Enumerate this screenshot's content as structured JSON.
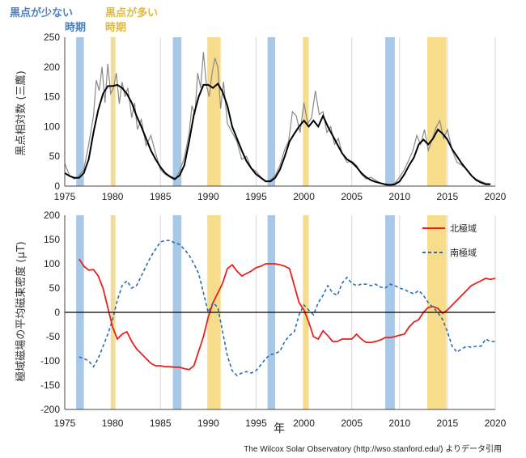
{
  "legend_key": {
    "low": {
      "line1": "黒点が少ない",
      "line2": "時期",
      "color": "#4a7fc1"
    },
    "high": {
      "line1": "黒点が多い",
      "line2": "時期",
      "color": "#e0b93a"
    }
  },
  "credit": "The Wilcox Solar Observatory (http://wso.stanford.edu/) よりデータ引用",
  "colors": {
    "low_band": "#a8c8e8",
    "high_band": "#f7dc8c",
    "north": "#e8201e",
    "south": "#2a6db5",
    "sunspot_raw": "#888888",
    "sunspot_smooth": "#000000"
  },
  "chart_data": [
    {
      "type": "line",
      "ylabel": "黒点相対数 (三鷹)",
      "xlabel": "",
      "xlim": [
        1975,
        2020
      ],
      "ylim": [
        0,
        250
      ],
      "x_ticks": [
        "1975",
        "1980",
        "1985",
        "1990",
        "1995",
        "2000",
        "2005",
        "2010",
        "2015",
        "2020"
      ],
      "y_ticks": [
        "0",
        "50",
        "100",
        "150",
        "200",
        "250"
      ],
      "grid": "vertical",
      "shaded_periods": {
        "low": [
          [
            1976.2,
            1977.0
          ],
          [
            1986.3,
            1987.2
          ],
          [
            1996.2,
            1997.0
          ],
          [
            2008.5,
            2009.5
          ]
        ],
        "high": [
          [
            1979.8,
            1980.3
          ],
          [
            1989.9,
            1991.3
          ],
          [
            1999.9,
            2000.5
          ],
          [
            2012.9,
            2014.9
          ]
        ]
      },
      "series": [
        {
          "role": "raw",
          "x": [
            1975.0,
            1975.5,
            1976.0,
            1976.5,
            1977.0,
            1977.5,
            1978.0,
            1978.3,
            1978.6,
            1978.9,
            1979.2,
            1979.5,
            1979.8,
            1980.1,
            1980.4,
            1980.7,
            1981.0,
            1981.3,
            1981.6,
            1982.0,
            1982.3,
            1982.6,
            1983.0,
            1983.5,
            1984.0,
            1984.5,
            1985.0,
            1985.5,
            1986.0,
            1986.5,
            1987.0,
            1987.5,
            1988.0,
            1988.3,
            1988.6,
            1988.9,
            1989.2,
            1989.5,
            1989.8,
            1990.1,
            1990.4,
            1990.7,
            1991.0,
            1991.3,
            1991.6,
            1992.0,
            1992.5,
            1993.0,
            1993.5,
            1994.0,
            1994.5,
            1995.0,
            1995.5,
            1996.0,
            1996.5,
            1997.0,
            1997.5,
            1998.0,
            1998.4,
            1998.8,
            1999.2,
            1999.6,
            2000.0,
            2000.4,
            2000.8,
            2001.2,
            2001.6,
            2002.0,
            2002.4,
            2002.8,
            2003.2,
            2003.6,
            2004.0,
            2004.5,
            2005.0,
            2005.5,
            2006.0,
            2006.5,
            2007.0,
            2007.5,
            2008.0,
            2008.5,
            2009.0,
            2009.5,
            2010.0,
            2010.5,
            2011.0,
            2011.4,
            2011.8,
            2012.2,
            2012.6,
            2013.0,
            2013.4,
            2013.8,
            2014.2,
            2014.6,
            2015.0,
            2015.5,
            2016.0,
            2016.5,
            2017.0,
            2017.5,
            2018.0,
            2018.5,
            2019.0,
            2019.5
          ],
          "y": [
            38,
            18,
            12,
            18,
            28,
            70,
            118,
            178,
            160,
            200,
            140,
            205,
            155,
            165,
            190,
            138,
            175,
            150,
            165,
            115,
            140,
            95,
            112,
            68,
            85,
            55,
            28,
            20,
            15,
            10,
            25,
            48,
            88,
            135,
            120,
            190,
            165,
            225,
            170,
            150,
            190,
            215,
            200,
            130,
            175,
            105,
            90,
            75,
            45,
            50,
            30,
            25,
            15,
            8,
            10,
            18,
            35,
            62,
            75,
            125,
            118,
            90,
            140,
            105,
            115,
            160,
            120,
            125,
            90,
            100,
            70,
            80,
            55,
            40,
            42,
            35,
            20,
            12,
            15,
            10,
            5,
            2,
            1,
            5,
            15,
            28,
            45,
            60,
            85,
            70,
            95,
            60,
            78,
            98,
            110,
            80,
            95,
            60,
            40,
            35,
            28,
            18,
            12,
            8,
            5,
            4
          ]
        },
        {
          "role": "smoothed",
          "x": [
            1975.0,
            1975.5,
            1976.0,
            1976.5,
            1977.0,
            1977.5,
            1978.0,
            1978.5,
            1979.0,
            1979.5,
            1980.0,
            1980.5,
            1981.0,
            1981.5,
            1982.0,
            1982.5,
            1983.0,
            1983.5,
            1984.0,
            1984.5,
            1985.0,
            1985.5,
            1986.0,
            1986.5,
            1987.0,
            1987.5,
            1988.0,
            1988.5,
            1989.0,
            1989.5,
            1990.0,
            1990.5,
            1991.0,
            1991.5,
            1992.0,
            1992.5,
            1993.0,
            1993.5,
            1994.0,
            1994.5,
            1995.0,
            1995.5,
            1996.0,
            1996.5,
            1997.0,
            1997.5,
            1998.0,
            1998.5,
            1999.0,
            1999.5,
            2000.0,
            2000.5,
            2001.0,
            2001.5,
            2002.0,
            2002.5,
            2003.0,
            2003.5,
            2004.0,
            2004.5,
            2005.0,
            2005.5,
            2006.0,
            2006.5,
            2007.0,
            2007.5,
            2008.0,
            2008.5,
            2009.0,
            2009.5,
            2010.0,
            2010.5,
            2011.0,
            2011.5,
            2012.0,
            2012.5,
            2013.0,
            2013.5,
            2014.0,
            2014.5,
            2015.0,
            2015.5,
            2016.0,
            2016.5,
            2017.0,
            2017.5,
            2018.0,
            2018.5,
            2019.0,
            2019.5
          ],
          "y": [
            22,
            17,
            14,
            14,
            22,
            45,
            90,
            128,
            155,
            168,
            168,
            170,
            165,
            155,
            140,
            118,
            100,
            80,
            60,
            45,
            32,
            22,
            16,
            12,
            18,
            35,
            75,
            120,
            150,
            170,
            170,
            165,
            172,
            158,
            135,
            100,
            80,
            60,
            42,
            30,
            20,
            14,
            8,
            8,
            14,
            28,
            50,
            75,
            88,
            100,
            110,
            100,
            110,
            100,
            118,
            100,
            85,
            70,
            55,
            45,
            40,
            32,
            22,
            15,
            10,
            7,
            5,
            3,
            2,
            3,
            8,
            20,
            35,
            48,
            70,
            78,
            70,
            80,
            95,
            88,
            78,
            62,
            50,
            38,
            28,
            18,
            10,
            6,
            3,
            3
          ]
        }
      ]
    },
    {
      "type": "line",
      "ylabel": "極域磁場の平均磁束密度 (μT)",
      "xlabel": "年",
      "xlim": [
        1975,
        2020
      ],
      "ylim": [
        -200,
        200
      ],
      "x_ticks": [
        "1975",
        "1980",
        "1985",
        "1990",
        "1995",
        "2000",
        "2005",
        "2010",
        "2015",
        "2020"
      ],
      "y_ticks": [
        "-200",
        "-150",
        "-100",
        "-50",
        "0",
        "50",
        "100",
        "150",
        "200"
      ],
      "grid": "vertical",
      "legend_position": "top-right",
      "series": [
        {
          "name": "北極域",
          "style": "solid",
          "x": [
            1976.5,
            1977.0,
            1977.5,
            1978.0,
            1978.5,
            1979.0,
            1979.5,
            1980.0,
            1980.5,
            1981.0,
            1981.5,
            1982.0,
            1982.5,
            1983.0,
            1983.5,
            1984.0,
            1984.5,
            1985.0,
            1985.5,
            1986.0,
            1986.5,
            1987.0,
            1987.5,
            1988.0,
            1988.5,
            1989.0,
            1989.5,
            1990.0,
            1990.5,
            1991.0,
            1991.5,
            1992.0,
            1992.5,
            1993.0,
            1993.5,
            1994.0,
            1994.5,
            1995.0,
            1995.5,
            1996.0,
            1996.5,
            1997.0,
            1997.5,
            1998.0,
            1998.5,
            1999.0,
            1999.5,
            2000.0,
            2000.5,
            2001.0,
            2001.5,
            2002.0,
            2002.5,
            2003.0,
            2003.5,
            2004.0,
            2004.5,
            2005.0,
            2005.5,
            2006.0,
            2006.5,
            2007.0,
            2007.5,
            2008.0,
            2008.5,
            2009.0,
            2009.5,
            2010.0,
            2010.5,
            2011.0,
            2011.5,
            2012.0,
            2012.5,
            2013.0,
            2013.5,
            2014.0,
            2014.5,
            2015.0,
            2015.5,
            2016.0,
            2016.5,
            2017.0,
            2017.5,
            2018.0,
            2018.5,
            2019.0,
            2019.5,
            2020.0
          ],
          "y": [
            110,
            95,
            87,
            88,
            75,
            50,
            10,
            -30,
            -55,
            -45,
            -40,
            -60,
            -75,
            -85,
            -95,
            -105,
            -110,
            -110,
            -112,
            -112,
            -113,
            -113,
            -116,
            -118,
            -110,
            -80,
            -50,
            -10,
            20,
            40,
            60,
            90,
            98,
            85,
            75,
            80,
            85,
            92,
            95,
            100,
            100,
            100,
            98,
            95,
            90,
            55,
            20,
            5,
            -20,
            -50,
            -55,
            -38,
            -48,
            -60,
            -60,
            -55,
            -55,
            -55,
            -45,
            -55,
            -62,
            -62,
            -60,
            -57,
            -52,
            -52,
            -50,
            -47,
            -45,
            -30,
            -20,
            -15,
            0,
            10,
            12,
            8,
            -2,
            5,
            15,
            25,
            35,
            45,
            55,
            60,
            65,
            70,
            68,
            70
          ]
        },
        {
          "name": "南極域",
          "style": "dashed",
          "x": [
            1976.5,
            1977.0,
            1977.5,
            1978.0,
            1978.5,
            1979.0,
            1979.5,
            1980.0,
            1980.5,
            1981.0,
            1981.5,
            1982.0,
            1982.5,
            1983.0,
            1983.5,
            1984.0,
            1984.5,
            1985.0,
            1985.5,
            1986.0,
            1986.5,
            1987.0,
            1987.5,
            1988.0,
            1988.5,
            1989.0,
            1989.5,
            1990.0,
            1990.5,
            1991.0,
            1991.5,
            1992.0,
            1992.5,
            1993.0,
            1993.5,
            1994.0,
            1994.5,
            1995.0,
            1995.5,
            1996.0,
            1996.5,
            1997.0,
            1997.5,
            1998.0,
            1998.5,
            1999.0,
            1999.5,
            2000.0,
            2000.5,
            2001.0,
            2001.5,
            2002.0,
            2002.5,
            2003.0,
            2003.5,
            2004.0,
            2004.5,
            2005.0,
            2005.5,
            2006.0,
            2006.5,
            2007.0,
            2007.5,
            2008.0,
            2008.5,
            2009.0,
            2009.5,
            2010.0,
            2010.5,
            2011.0,
            2011.5,
            2012.0,
            2012.5,
            2013.0,
            2013.5,
            2014.0,
            2014.5,
            2015.0,
            2015.5,
            2016.0,
            2016.5,
            2017.0,
            2017.5,
            2018.0,
            2018.5,
            2019.0,
            2019.5,
            2020.0
          ],
          "y": [
            -92,
            -95,
            -100,
            -112,
            -95,
            -70,
            -45,
            -15,
            25,
            55,
            65,
            50,
            55,
            75,
            95,
            115,
            130,
            145,
            148,
            148,
            143,
            140,
            130,
            118,
            100,
            80,
            40,
            0,
            20,
            10,
            -40,
            -90,
            -120,
            -130,
            -125,
            -122,
            -125,
            -120,
            -108,
            -95,
            -87,
            -85,
            -80,
            -60,
            -48,
            -40,
            -5,
            15,
            5,
            -5,
            20,
            35,
            55,
            40,
            35,
            60,
            72,
            60,
            55,
            58,
            58,
            55,
            58,
            52,
            50,
            58,
            55,
            50,
            47,
            42,
            38,
            45,
            35,
            20,
            10,
            0,
            -15,
            -40,
            -70,
            -82,
            -75,
            -70,
            -72,
            -70,
            -70,
            -55,
            -60,
            -60
          ]
        }
      ]
    }
  ]
}
